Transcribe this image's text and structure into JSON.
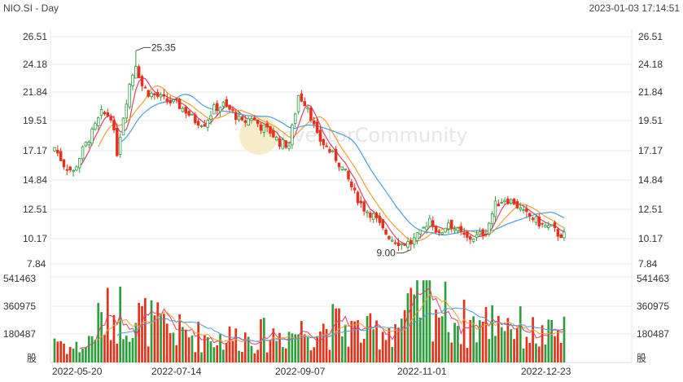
{
  "header": {
    "title": "NIO.SI - Day",
    "timestamp": "2023-01-03 17:14:51"
  },
  "watermark": "InvestorCommunity",
  "volume_unit": "股",
  "colors": {
    "up": "#2e9e3e",
    "down": "#e8311a",
    "ma5": "#e0406a",
    "ma10": "#f0a030",
    "ma20": "#4a9fe0",
    "grid": "#e0e0e0",
    "annotation": "#333333"
  },
  "chart_data": {
    "type": "candlestick",
    "price_axis": {
      "ticks": [
        26.51,
        24.18,
        21.84,
        19.51,
        17.17,
        14.84,
        12.51,
        10.17,
        7.84
      ],
      "ylim": [
        7.84,
        26.51
      ]
    },
    "volume_axis": {
      "ticks": [
        541463,
        360975,
        180487
      ],
      "ylim": [
        0,
        541463
      ]
    },
    "x_tick_labels": [
      "2022-05-20",
      "2022-07-14",
      "2022-09-07",
      "2022-11-01",
      "2022-12-23"
    ],
    "x_tick_indices": [
      0,
      38,
      76,
      114,
      154
    ],
    "annotations": [
      {
        "label": "25.35",
        "bar_index": 26,
        "value": 25.35,
        "kind": "high"
      },
      {
        "label": "9.00",
        "bar_index": 114,
        "value": 9.0,
        "kind": "low"
      }
    ],
    "moving_averages": [
      {
        "name": "MA5",
        "period": 5
      },
      {
        "name": "MA10",
        "period": 10
      },
      {
        "name": "MA20",
        "period": 20
      }
    ],
    "close_anchors": [
      [
        0,
        17.4
      ],
      [
        3,
        16.0
      ],
      [
        6,
        15.4
      ],
      [
        9,
        17.2
      ],
      [
        12,
        18.6
      ],
      [
        15,
        20.2
      ],
      [
        18,
        20.0
      ],
      [
        20,
        17.0
      ],
      [
        22,
        20.0
      ],
      [
        24,
        22.6
      ],
      [
        26,
        24.3
      ],
      [
        28,
        22.5
      ],
      [
        30,
        21.9
      ],
      [
        33,
        21.6
      ],
      [
        36,
        21.2
      ],
      [
        39,
        21.0
      ],
      [
        42,
        20.4
      ],
      [
        45,
        19.6
      ],
      [
        48,
        19.4
      ],
      [
        51,
        20.6
      ],
      [
        54,
        20.9
      ],
      [
        57,
        20.3
      ],
      [
        60,
        19.4
      ],
      [
        63,
        19.9
      ],
      [
        66,
        19.1
      ],
      [
        69,
        18.7
      ],
      [
        72,
        17.8
      ],
      [
        75,
        17.6
      ],
      [
        78,
        21.7
      ],
      [
        81,
        20.8
      ],
      [
        84,
        18.3
      ],
      [
        87,
        17.4
      ],
      [
        90,
        16.5
      ],
      [
        93,
        15.3
      ],
      [
        96,
        13.6
      ],
      [
        99,
        12.4
      ],
      [
        102,
        11.8
      ],
      [
        105,
        10.6
      ],
      [
        108,
        9.9
      ],
      [
        111,
        9.5
      ],
      [
        114,
        9.6
      ],
      [
        117,
        10.3
      ],
      [
        120,
        11.6
      ],
      [
        123,
        10.2
      ],
      [
        126,
        11.3
      ],
      [
        129,
        10.5
      ],
      [
        132,
        9.9
      ],
      [
        135,
        10.1
      ],
      [
        138,
        10.5
      ],
      [
        141,
        12.7
      ],
      [
        144,
        13.2
      ],
      [
        147,
        12.9
      ],
      [
        150,
        12.0
      ],
      [
        153,
        11.6
      ],
      [
        156,
        11.0
      ],
      [
        159,
        10.8
      ],
      [
        161,
        10.3
      ],
      [
        163,
        10.2
      ]
    ],
    "volume_profile": [
      [
        0,
        160000
      ],
      [
        5,
        90000
      ],
      [
        10,
        100000
      ],
      [
        14,
        250000
      ],
      [
        18,
        300000
      ],
      [
        22,
        320000
      ],
      [
        26,
        280000
      ],
      [
        30,
        260000
      ],
      [
        36,
        200000
      ],
      [
        44,
        170000
      ],
      [
        52,
        150000
      ],
      [
        60,
        160000
      ],
      [
        70,
        170000
      ],
      [
        80,
        200000
      ],
      [
        90,
        230000
      ],
      [
        100,
        180000
      ],
      [
        108,
        220000
      ],
      [
        114,
        300000
      ],
      [
        118,
        420000
      ],
      [
        124,
        330000
      ],
      [
        130,
        240000
      ],
      [
        138,
        240000
      ],
      [
        142,
        300000
      ],
      [
        148,
        220000
      ],
      [
        156,
        160000
      ],
      [
        163,
        180000
      ]
    ]
  }
}
